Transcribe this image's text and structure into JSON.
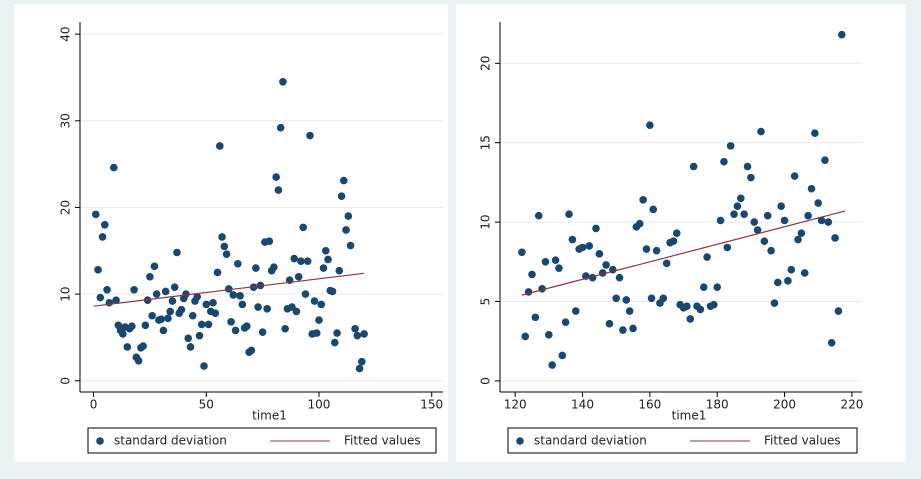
{
  "chart_data": [
    {
      "type": "scatter",
      "xlabel": "time1",
      "xlim": [
        -6,
        155
      ],
      "ylim": [
        -1.3,
        41.4
      ],
      "xticks": [
        0,
        50,
        100,
        150
      ],
      "yticks": [
        0,
        10,
        20,
        30,
        40
      ],
      "grid": true,
      "series": [
        {
          "name": "standard deviation",
          "color": "#1a476f",
          "mode": "markers",
          "x": [
            1,
            2,
            3,
            4,
            5,
            6,
            7,
            9,
            10,
            11,
            12,
            13,
            14,
            15,
            16,
            17,
            18,
            19,
            20,
            21,
            22,
            23,
            24,
            25,
            26,
            27,
            28,
            29,
            30,
            31,
            32,
            33,
            34,
            35,
            36,
            37,
            38,
            39,
            40,
            41,
            42,
            43,
            44,
            45,
            46,
            47,
            48,
            49,
            50,
            51,
            52,
            53,
            54,
            55,
            56,
            57,
            58,
            59,
            60,
            61,
            62,
            63,
            64,
            65,
            66,
            67,
            68,
            69,
            70,
            71,
            72,
            73,
            74,
            75,
            76,
            77,
            78,
            79,
            80,
            81,
            82,
            83,
            84,
            85,
            86,
            87,
            88,
            89,
            90,
            91,
            92,
            93,
            94,
            95,
            96,
            97,
            98,
            99,
            100,
            101,
            102,
            103,
            104,
            105,
            106,
            107,
            108,
            109,
            110,
            111,
            112,
            113,
            114,
            116,
            117,
            118,
            119,
            120
          ],
          "values": [
            19.2,
            12.8,
            9.6,
            16.6,
            18,
            10.5,
            9,
            24.6,
            9.3,
            6.4,
            5.8,
            5.4,
            6.2,
            3.9,
            6,
            6.3,
            10.5,
            2.7,
            2.3,
            3.8,
            4,
            6.4,
            9.3,
            12,
            7.5,
            13.2,
            10,
            7,
            7.1,
            5.8,
            10.3,
            7.2,
            8,
            9.2,
            10.8,
            14.8,
            7.8,
            8.2,
            9.5,
            10,
            4.9,
            3.9,
            7.5,
            9.2,
            9.7,
            5.2,
            6.5,
            1.7,
            8.8,
            6.5,
            8,
            9,
            7.8,
            12.5,
            27.1,
            16.6,
            15.5,
            14.6,
            10.6,
            6.8,
            9.9,
            5.8,
            13.5,
            9.8,
            8.8,
            6.1,
            6.3,
            3.3,
            3.5,
            10.8,
            13,
            8.5,
            11,
            5.6,
            16,
            8.3,
            16.1,
            12.7,
            13.1,
            23.5,
            22,
            29.2,
            34.5,
            6,
            8.3,
            11.6,
            8.5,
            14.1,
            8,
            12,
            13.8,
            17.7,
            10,
            13.8,
            28.3,
            5.4,
            9.2,
            5.5,
            7,
            8.8,
            13,
            15,
            14,
            10.4,
            10.3,
            4.4,
            5.5,
            12.7,
            21.3,
            23.1,
            17.4,
            19,
            15.6,
            6,
            5.2,
            1.4,
            2.2,
            5.4
          ]
        },
        {
          "name": "Fitted values",
          "color": "#90353b",
          "mode": "line",
          "x": [
            0,
            120
          ],
          "values": [
            8.6,
            12.4
          ]
        }
      ]
    },
    {
      "type": "scatter",
      "xlabel": "time1",
      "xlim": [
        115.5,
        223
      ],
      "ylim": [
        -0.7,
        22.6
      ],
      "xticks": [
        120,
        140,
        160,
        180,
        200,
        220
      ],
      "yticks": [
        0,
        5,
        10,
        15,
        20
      ],
      "grid": true,
      "series": [
        {
          "name": "standard deviation",
          "color": "#1a476f",
          "mode": "markers",
          "x": [
            122,
            123,
            124,
            125,
            126,
            127,
            128,
            129,
            130,
            131,
            132,
            133,
            134,
            135,
            136,
            137,
            138,
            139,
            140,
            141,
            142,
            143,
            144,
            145,
            146,
            147,
            148,
            149,
            150,
            151,
            152,
            153,
            154,
            155,
            156,
            157,
            158,
            159,
            160,
            160.5,
            161,
            162,
            163,
            164,
            165,
            166,
            167,
            168,
            169,
            170,
            171,
            172,
            173,
            174,
            175,
            176,
            177,
            178,
            179,
            180,
            181,
            182,
            183,
            184,
            185,
            186,
            187,
            188,
            189,
            190,
            191,
            192,
            193,
            194,
            195,
            196,
            197,
            198,
            199,
            200,
            201,
            202,
            203,
            204,
            205,
            206,
            207,
            208,
            209,
            210,
            211,
            212,
            213,
            214,
            215,
            216,
            217
          ],
          "values": [
            8.1,
            2.8,
            5.6,
            6.7,
            4,
            10.4,
            5.8,
            7.5,
            2.9,
            1,
            7.6,
            7.1,
            1.6,
            3.7,
            10.5,
            8.9,
            4.4,
            8.3,
            8.4,
            6.6,
            8.5,
            6.5,
            9.6,
            8,
            6.8,
            7.3,
            3.6,
            7,
            5.2,
            6.5,
            3.2,
            5.1,
            4.4,
            3.3,
            9.7,
            9.9,
            11.4,
            8.3,
            16.1,
            5.2,
            10.8,
            8.2,
            4.9,
            5.2,
            7.4,
            8.7,
            8.8,
            9.3,
            4.8,
            4.6,
            4.7,
            3.9,
            13.5,
            4.7,
            4.5,
            5.9,
            7.8,
            4.7,
            4.8,
            5.9,
            10.1,
            13.8,
            8.4,
            14.8,
            10.5,
            11,
            11.5,
            10.5,
            13.5,
            12.8,
            10,
            9.5,
            15.7,
            8.8,
            10.4,
            8.2,
            4.9,
            6.2,
            11,
            10.1,
            6.3,
            7,
            12.9,
            8.9,
            9.3,
            6.8,
            10.4,
            12.1,
            15.6,
            11.2,
            10.1,
            13.9,
            10,
            2.4,
            9,
            4.4,
            21.8
          ]
        },
        {
          "name": "Fitted values",
          "color": "#90353b",
          "mode": "line",
          "x": [
            122,
            218
          ],
          "values": [
            5.4,
            10.7
          ]
        }
      ]
    }
  ]
}
